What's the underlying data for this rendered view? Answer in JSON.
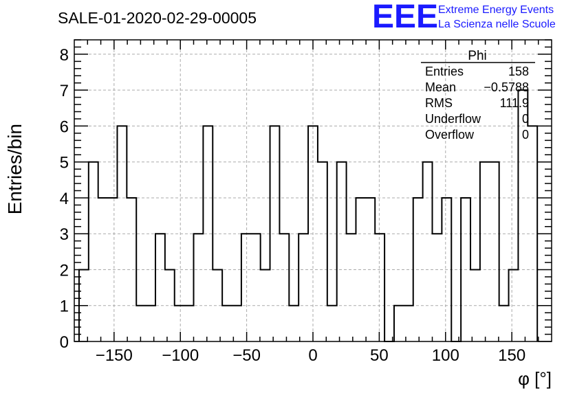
{
  "chart_data": {
    "type": "bar",
    "title": "SALE-01-2020-02-29-00005",
    "xlabel": "φ [°]",
    "ylabel": "Entries/bin",
    "xlim": [
      -180,
      180
    ],
    "ylim": [
      0,
      8.4
    ],
    "bin_start": -176.4,
    "bin_width": 7.2,
    "values": [
      2,
      5,
      4,
      4,
      6,
      4,
      1,
      1,
      3,
      2,
      1,
      1,
      3,
      6,
      2,
      1,
      1,
      3,
      3,
      2,
      6,
      3,
      1,
      3,
      6,
      5,
      1,
      5,
      3,
      4,
      4,
      3,
      0,
      1,
      1,
      4,
      5,
      3,
      4,
      0,
      4,
      2,
      5,
      5,
      1,
      2,
      7,
      6
    ],
    "x_ticks": [
      -150,
      -100,
      -50,
      0,
      50,
      100,
      150
    ],
    "x_tick_labels": [
      "−150",
      "−100",
      "−50",
      "0",
      "50",
      "100",
      "150"
    ],
    "y_ticks": [
      0,
      1,
      2,
      3,
      4,
      5,
      6,
      7,
      8
    ],
    "y_tick_labels": [
      "0",
      "1",
      "2",
      "3",
      "4",
      "5",
      "6",
      "7",
      "8"
    ],
    "grid": true,
    "stats_box": {
      "title": "Phi",
      "rows": [
        {
          "label": "Entries",
          "value": "158"
        },
        {
          "label": "Mean",
          "value": "−0.5788"
        },
        {
          "label": "RMS",
          "value": "111.9"
        },
        {
          "label": "Underflow",
          "value": "0"
        },
        {
          "label": "Overflow",
          "value": "0"
        }
      ]
    }
  },
  "logo": {
    "mark": "EEE",
    "line1": "Extreme Energy Events",
    "line2": "La Scienza nelle Scuole",
    "color": "#1a1aff"
  }
}
